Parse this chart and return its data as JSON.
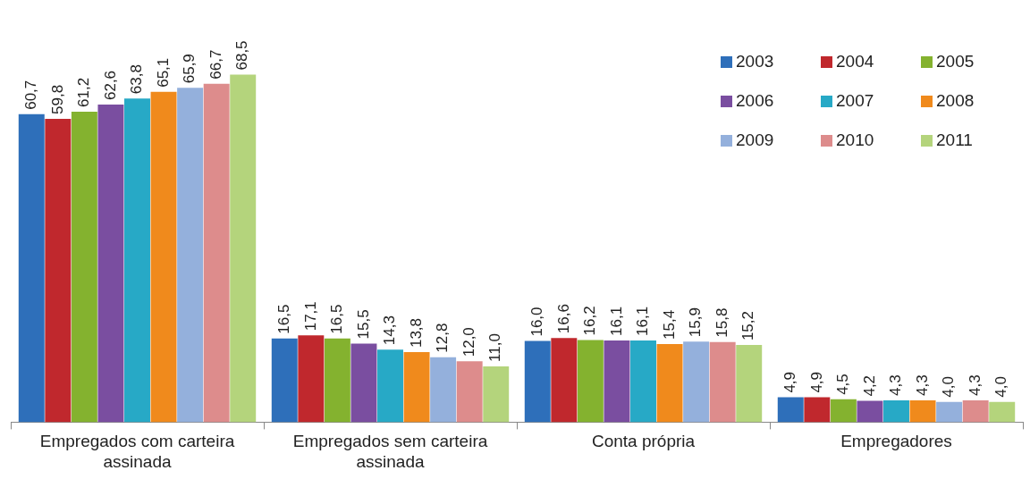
{
  "chart_data": {
    "type": "bar",
    "categories": [
      "Empregados com carteira assinada",
      "Empregados sem carteira assinada",
      "Conta própria",
      "Empregadores"
    ],
    "series": [
      {
        "name": "2003",
        "color": "#2e6fba",
        "values": [
          60.7,
          16.5,
          16.0,
          4.9
        ],
        "value_labels": [
          "60,7",
          "16,5",
          "16,0",
          "4,9"
        ]
      },
      {
        "name": "2004",
        "color": "#c0282d",
        "values": [
          59.8,
          17.1,
          16.6,
          4.9
        ],
        "value_labels": [
          "59,8",
          "17,1",
          "16,6",
          "4,9"
        ]
      },
      {
        "name": "2005",
        "color": "#84b22f",
        "values": [
          61.2,
          16.5,
          16.2,
          4.5
        ],
        "value_labels": [
          "61,2",
          "16,5",
          "16,2",
          "4,5"
        ]
      },
      {
        "name": "2006",
        "color": "#7a4ea0",
        "values": [
          62.6,
          15.5,
          16.1,
          4.2
        ],
        "value_labels": [
          "62,6",
          "15,5",
          "16,1",
          "4,2"
        ]
      },
      {
        "name": "2007",
        "color": "#27a9c6",
        "values": [
          63.8,
          14.3,
          16.1,
          4.3
        ],
        "value_labels": [
          "63,8",
          "14,3",
          "16,1",
          "4,3"
        ]
      },
      {
        "name": "2008",
        "color": "#f08a1c",
        "values": [
          65.1,
          13.8,
          15.4,
          4.3
        ],
        "value_labels": [
          "65,1",
          "13,8",
          "15,4",
          "4,3"
        ]
      },
      {
        "name": "2009",
        "color": "#94b0dc",
        "values": [
          65.9,
          12.8,
          15.9,
          4.0
        ],
        "value_labels": [
          "65,9",
          "12,8",
          "15,9",
          "4,0"
        ]
      },
      {
        "name": "2010",
        "color": "#dd8c8c",
        "values": [
          66.7,
          12.0,
          15.8,
          4.3
        ],
        "value_labels": [
          "66,7",
          "12,0",
          "15,8",
          "4,3"
        ]
      },
      {
        "name": "2011",
        "color": "#b4d47c",
        "values": [
          68.5,
          11.0,
          15.2,
          4.0
        ],
        "value_labels": [
          "68,5",
          "11,0",
          "15,2",
          "4,0"
        ]
      }
    ],
    "legend": "top right",
    "grid": false,
    "tick_labels": "x"
  }
}
